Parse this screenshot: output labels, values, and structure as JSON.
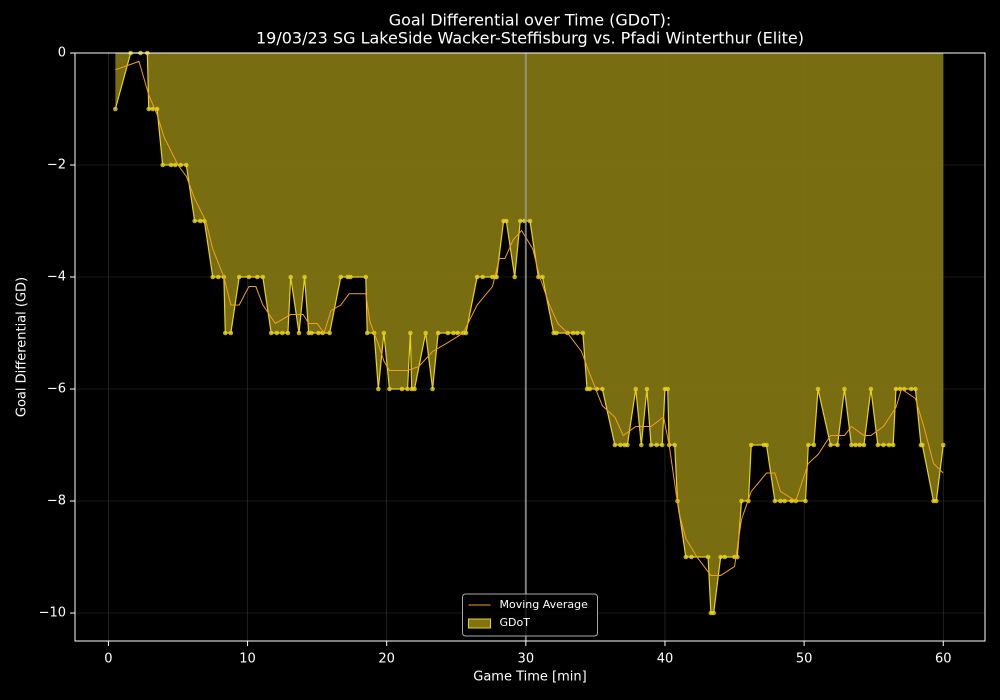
{
  "chart_data": {
    "type": "area",
    "title": [
      "Goal Differential over Time (GDoT):",
      "19/03/23 SG LakeSide Wacker-Steffisburg  vs.  Pfadi Winterthur (Elite)"
    ],
    "x_label": "Game Time [min]",
    "y_label": "Goal Differential (GD)",
    "xlim": [
      -2.4,
      63
    ],
    "ylim": [
      -10.5,
      0
    ],
    "xticks": [
      0,
      10,
      20,
      30,
      40,
      50,
      60
    ],
    "yticks": [
      {
        "value": -10,
        "label": "−10"
      },
      {
        "value": -8,
        "label": "−8"
      },
      {
        "value": -6,
        "label": "−6"
      },
      {
        "value": -4,
        "label": "−4"
      },
      {
        "value": -2,
        "label": "−2"
      },
      0
    ],
    "grid": true,
    "legend": "lower center",
    "vline": 30,
    "series": [
      {
        "name": "Moving Average",
        "kind": "line",
        "color": "#f0a020",
        "x": [
          0.5,
          2.2,
          2.9,
          3.5,
          4.0,
          5.0,
          5.6,
          6.2,
          7.0,
          7.5,
          8.3,
          8.8,
          9.4,
          10.1,
          10.6,
          11.1,
          12.0,
          13.1,
          14.0,
          14.4,
          15.0,
          15.5,
          16.0,
          16.7,
          17.3,
          18.5,
          18.8,
          19.4,
          19.8,
          20.2,
          21.5,
          22.3,
          23.3,
          24.4,
          25.5,
          26.5,
          27.6,
          28.1,
          28.5,
          29.1,
          29.7,
          30.5,
          31.0,
          31.7,
          32.3,
          33.0,
          34.0,
          34.5,
          35.5,
          36.4,
          37.0,
          37.9,
          39.0,
          39.9,
          40.3,
          41.0,
          41.5,
          42.3,
          43.3,
          44.0,
          45.0,
          45.5,
          46.2,
          47.3,
          47.9,
          48.3,
          49.4,
          50.3,
          51.0,
          51.9,
          52.9,
          53.4,
          54.3,
          54.8,
          55.7,
          56.6,
          57.0,
          58.0,
          58.6,
          59.3,
          60.0
        ],
        "values": [
          -0.3,
          -0.15,
          -0.75,
          -1.1,
          -1.5,
          -2,
          -2.2,
          -2.6,
          -3,
          -3.5,
          -4,
          -4.5,
          -4.5,
          -4.17,
          -4.17,
          -4.5,
          -4.83,
          -4.67,
          -4.67,
          -4.83,
          -4.83,
          -5,
          -4.6,
          -4.5,
          -4.3,
          -4.3,
          -4.8,
          -5.2,
          -5.5,
          -5.67,
          -5.67,
          -5.6,
          -5.33,
          -5.17,
          -5,
          -4.5,
          -4.17,
          -3.67,
          -3.67,
          -3.33,
          -3.17,
          -3.5,
          -4,
          -4.5,
          -4.83,
          -5,
          -5.33,
          -5.67,
          -6.3,
          -6.5,
          -6.83,
          -6.67,
          -6.67,
          -6.5,
          -7,
          -8.2,
          -8.67,
          -9,
          -9.33,
          -9.33,
          -9.17,
          -8.33,
          -7.83,
          -7.5,
          -7.5,
          -7.83,
          -8,
          -7.33,
          -7.17,
          -6.83,
          -6.83,
          -6.67,
          -6.83,
          -6.83,
          -6.67,
          -6.33,
          -6,
          -6.17,
          -6.67,
          -7.33,
          -7.5
        ]
      },
      {
        "name": "GDoT",
        "kind": "area",
        "color": "#e8d21f",
        "fill": "#7f7312",
        "x": [
          0.5,
          1.6,
          2.3,
          2.8,
          2.9,
          3.2,
          3.5,
          3.9,
          4.5,
          4.8,
          5.2,
          5.6,
          6.2,
          6.6,
          6.9,
          7.5,
          7.9,
          8.3,
          8.4,
          8.8,
          9.4,
          10.1,
          10.7,
          11.1,
          11.7,
          12.1,
          12.5,
          12.9,
          13.1,
          13.7,
          14.1,
          14.4,
          14.6,
          15.1,
          15.4,
          15.9,
          16.7,
          17.2,
          17.4,
          18.5,
          18.6,
          19.1,
          19.4,
          19.8,
          20.2,
          21.1,
          21.5,
          21.7,
          21.8,
          22.0,
          22.8,
          23.3,
          23.7,
          24.4,
          24.8,
          25.1,
          25.5,
          25.7,
          26.5,
          26.9,
          27.6,
          27.8,
          27.9,
          28.4,
          28.6,
          29.2,
          29.6,
          29.9,
          30.3,
          30.9,
          31.2,
          32.0,
          32.2,
          33.0,
          33.4,
          33.7,
          34.1,
          34.4,
          34.6,
          35.1,
          35.5,
          36.4,
          36.8,
          37.1,
          37.3,
          37.9,
          38.3,
          38.7,
          39.0,
          39.4,
          39.8,
          40.0,
          40.2,
          40.3,
          40.7,
          40.9,
          41.5,
          41.9,
          43.1,
          43.3,
          43.5,
          44.0,
          44.3,
          45.0,
          45.2,
          45.5,
          46.0,
          46.2,
          47.1,
          47.3,
          47.9,
          48.3,
          48.6,
          49.1,
          49.4,
          50.1,
          50.3,
          50.7,
          51.0,
          51.9,
          52.4,
          52.9,
          53.4,
          53.7,
          54.0,
          54.3,
          54.8,
          55.3,
          55.7,
          56.1,
          56.4,
          56.6,
          56.9,
          57.2,
          57.7,
          58.0,
          58.4,
          58.5,
          59.3,
          59.5,
          60.0
        ],
        "values": [
          -1,
          0,
          0,
          0,
          -1,
          -1,
          -1,
          -2,
          -2,
          -2,
          -2,
          -2,
          -3,
          -3,
          -3,
          -4,
          -4,
          -4,
          -5,
          -5,
          -4,
          -4,
          -4,
          -4,
          -5,
          -5,
          -5,
          -5,
          -4,
          -5,
          -4,
          -5,
          -5,
          -5,
          -5,
          -5,
          -4,
          -4,
          -4,
          -4,
          -5,
          -5,
          -6,
          -5,
          -6,
          -6,
          -6,
          -5,
          -6,
          -6,
          -5,
          -6,
          -5,
          -5,
          -5,
          -5,
          -5,
          -5,
          -4,
          -4,
          -4,
          -4,
          -4,
          -3,
          -3,
          -4,
          -3,
          -3,
          -3,
          -4,
          -4,
          -5,
          -5,
          -5,
          -5,
          -5,
          -5,
          -6,
          -6,
          -6,
          -6,
          -7,
          -7,
          -7,
          -7,
          -6,
          -7,
          -6,
          -7,
          -7,
          -7,
          -6,
          -6,
          -7,
          -7,
          -8,
          -9,
          -9,
          -9,
          -10,
          -10,
          -9,
          -9,
          -9,
          -9,
          -8,
          -8,
          -7,
          -7,
          -7,
          -8,
          -8,
          -8,
          -8,
          -8,
          -8,
          -7,
          -7,
          -6,
          -7,
          -7,
          -6,
          -7,
          -7,
          -7,
          -7,
          -6,
          -7,
          -7,
          -7,
          -7,
          -6,
          -6,
          -6,
          -6,
          -6,
          -7,
          -7,
          -8,
          -8,
          -7
        ]
      }
    ]
  }
}
